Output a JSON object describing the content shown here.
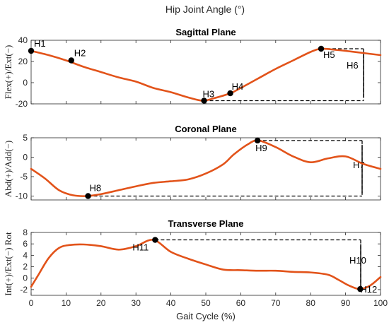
{
  "title": "Hip Joint Angle (°)",
  "colors": {
    "curve": "#E2531A",
    "marker": "#000000",
    "axis": "#262626"
  },
  "chart_data": [
    {
      "type": "line",
      "title": "Sagittal Plane",
      "ylabel": "Flex(+)/Ext(−)",
      "xlabel": "",
      "xlim": [
        0,
        100
      ],
      "ylim": [
        -20,
        40
      ],
      "xticks": [
        0,
        10,
        20,
        30,
        40,
        50,
        60,
        70,
        80,
        90,
        100
      ],
      "yticks": [
        -20,
        0,
        20,
        40
      ],
      "show_xtick_labels": false,
      "x": [
        0,
        5,
        10,
        15,
        20,
        25,
        30,
        35,
        40,
        45,
        49,
        52,
        57,
        60,
        65,
        70,
        75,
        80,
        83,
        87,
        90,
        95,
        100
      ],
      "values": [
        30,
        26,
        21,
        15,
        10,
        5,
        1,
        -5,
        -9,
        -14,
        -17,
        -15,
        -10,
        -5,
        4,
        13,
        21,
        29,
        32,
        31,
        30,
        28,
        26
      ],
      "points": [
        {
          "label": "H1",
          "x": 0,
          "y": 30
        },
        {
          "label": "H2",
          "x": 11.5,
          "y": 21
        },
        {
          "label": "H3",
          "x": 49.5,
          "y": -17
        },
        {
          "label": "H4",
          "x": 57,
          "y": -10
        },
        {
          "label": "H5",
          "x": 83,
          "y": 32
        }
      ],
      "range_label": "H6"
    },
    {
      "type": "line",
      "title": "Coronal Plane",
      "ylabel": "Abd(+)/Add(−)",
      "xlabel": "",
      "xlim": [
        0,
        100
      ],
      "ylim": [
        -11,
        5
      ],
      "xticks": [
        0,
        10,
        20,
        30,
        40,
        50,
        60,
        70,
        80,
        90,
        100
      ],
      "yticks": [
        -10,
        -5,
        0,
        5
      ],
      "show_xtick_labels": false,
      "x": [
        0,
        4,
        8,
        12,
        16,
        20,
        25,
        30,
        35,
        40,
        45,
        50,
        55,
        58,
        62,
        65,
        70,
        75,
        80,
        85,
        90,
        95,
        100
      ],
      "values": [
        -3,
        -5.5,
        -8.5,
        -9.8,
        -10,
        -9.5,
        -8.5,
        -7.5,
        -6.6,
        -6.2,
        -5.7,
        -4.2,
        -1.8,
        0.7,
        3.3,
        4.3,
        2.6,
        0.2,
        -1.3,
        -0.3,
        0.2,
        -1.7,
        -3
      ],
      "points": [
        {
          "label": "H8",
          "x": 16.3,
          "y": -10
        },
        {
          "label": "H9",
          "x": 64.8,
          "y": 4.3
        }
      ],
      "range_label": "H7"
    },
    {
      "type": "line",
      "title": "Transverse Plane",
      "ylabel": "Int(+)/Ext(−) Rot",
      "xlabel": "Gait Cycle (%)",
      "xlim": [
        0,
        100
      ],
      "ylim": [
        -3,
        8
      ],
      "xticks": [
        0,
        10,
        20,
        30,
        40,
        50,
        60,
        70,
        80,
        90,
        100
      ],
      "yticks": [
        -2,
        0,
        2,
        4,
        6,
        8
      ],
      "show_xtick_labels": true,
      "x": [
        0,
        2,
        5,
        8,
        11,
        15,
        20,
        25,
        30,
        35,
        40,
        45,
        50,
        55,
        60,
        65,
        70,
        75,
        80,
        85,
        88,
        91,
        94,
        97,
        100
      ],
      "values": [
        -1.5,
        0.5,
        3.5,
        5.3,
        5.8,
        5.9,
        5.6,
        5,
        5.6,
        6.7,
        4.6,
        3.4,
        2.4,
        1.5,
        1.4,
        1.3,
        1.3,
        1.1,
        1,
        0.6,
        -0.3,
        -1.3,
        -1.9,
        -1.3,
        0.2
      ],
      "points": [
        {
          "label": "H11",
          "x": 35.5,
          "y": 6.7
        },
        {
          "label": "H12",
          "x": 94.2,
          "y": -1.9
        }
      ],
      "range_label": "H10"
    }
  ]
}
